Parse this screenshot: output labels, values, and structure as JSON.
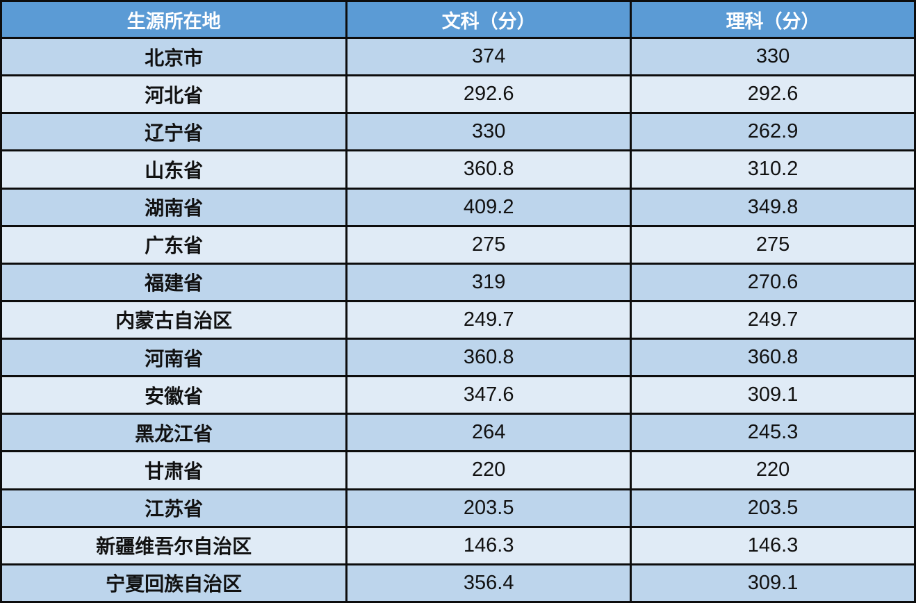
{
  "header": {
    "region": "生源所在地",
    "arts": "文科（分）",
    "science": "理科（分）"
  },
  "rows": [
    {
      "region": "北京市",
      "arts": "374",
      "science": "330"
    },
    {
      "region": "河北省",
      "arts": "292.6",
      "science": "292.6"
    },
    {
      "region": "辽宁省",
      "arts": "330",
      "science": "262.9"
    },
    {
      "region": "山东省",
      "arts": "360.8",
      "science": "310.2"
    },
    {
      "region": "湖南省",
      "arts": "409.2",
      "science": "349.8"
    },
    {
      "region": "广东省",
      "arts": "275",
      "science": "275"
    },
    {
      "region": "福建省",
      "arts": "319",
      "science": "270.6"
    },
    {
      "region": "内蒙古自治区",
      "arts": "249.7",
      "science": "249.7"
    },
    {
      "region": "河南省",
      "arts": "360.8",
      "science": "360.8"
    },
    {
      "region": "安徽省",
      "arts": "347.6",
      "science": "309.1"
    },
    {
      "region": "黑龙江省",
      "arts": "264",
      "science": "245.3"
    },
    {
      "region": "甘肃省",
      "arts": "220",
      "science": "220"
    },
    {
      "region": "江苏省",
      "arts": "203.5",
      "science": "203.5"
    },
    {
      "region": "新疆维吾尔自治区",
      "arts": "146.3",
      "science": "146.3"
    },
    {
      "region": "宁夏回族自治区",
      "arts": "356.4",
      "science": "309.1"
    }
  ],
  "colors": {
    "header_bg": "#5b9bd5",
    "row_dark": "#bdd5ec",
    "row_light": "#e0ebf6",
    "border": "#0d0d0d"
  }
}
